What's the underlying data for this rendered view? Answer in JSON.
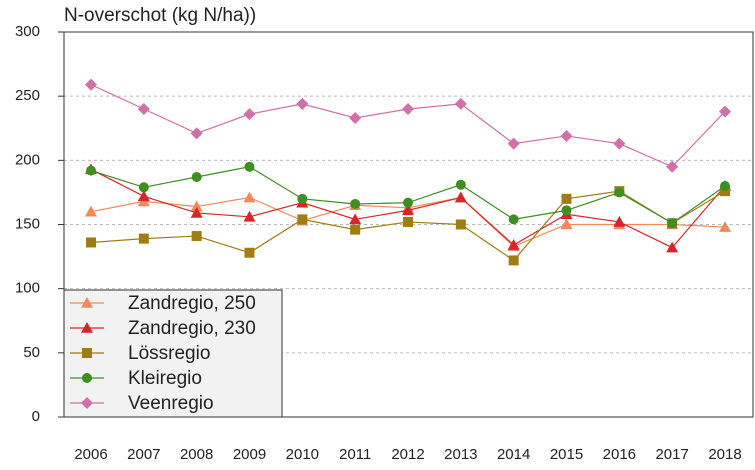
{
  "chart_data": {
    "type": "line",
    "title": "N-overschot (kg N/ha))",
    "categories": [
      "2006",
      "2007",
      "2008",
      "2009",
      "2010",
      "2011",
      "2012",
      "2013",
      "2014",
      "2015",
      "2016",
      "2017",
      "2018"
    ],
    "ylim": [
      0,
      300
    ],
    "yticks": [
      0,
      50,
      100,
      150,
      200,
      250,
      300
    ],
    "grid": true,
    "legend": "lower-left",
    "series": [
      {
        "name": "Zandregio, 250",
        "color": "#f08a5a",
        "marker": "triangle",
        "values": [
          160,
          168,
          164,
          171,
          153,
          165,
          163,
          171,
          133,
          150,
          150,
          150,
          148
        ]
      },
      {
        "name": "Zandregio, 230",
        "color": "#d62728",
        "marker": "triangle",
        "values": [
          193,
          172,
          159,
          156,
          167,
          154,
          161,
          171,
          134,
          158,
          152,
          132,
          180
        ]
      },
      {
        "name": "Lössregio",
        "color": "#a07d12",
        "marker": "square",
        "values": [
          136,
          139,
          141,
          128,
          154,
          146,
          152,
          150,
          122,
          170,
          176,
          151,
          176
        ]
      },
      {
        "name": "Kleiregio",
        "color": "#3e8e22",
        "marker": "circle",
        "values": [
          192,
          179,
          187,
          195,
          170,
          166,
          167,
          181,
          154,
          161,
          175,
          151,
          180
        ]
      },
      {
        "name": "Veenregio",
        "color": "#d070a8",
        "marker": "diamond",
        "values": [
          259,
          240,
          221,
          236,
          244,
          233,
          240,
          244,
          213,
          219,
          213,
          195,
          238
        ]
      }
    ]
  }
}
